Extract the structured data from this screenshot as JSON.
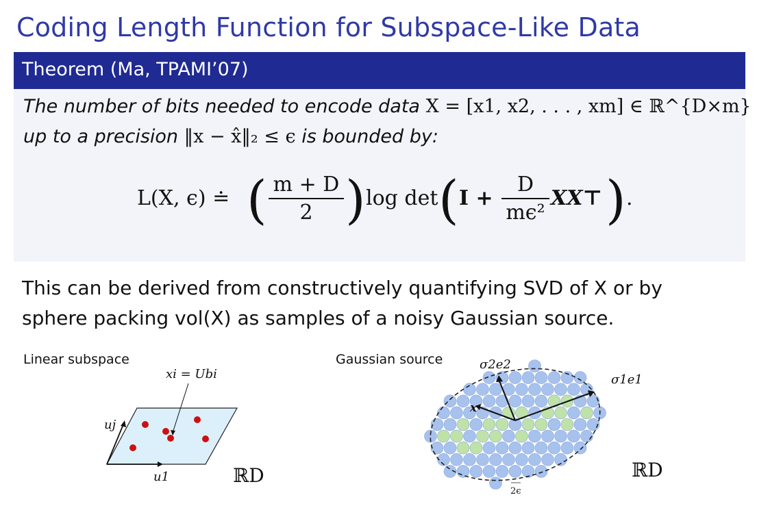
{
  "slide": {
    "title": "Coding Length Function for Subspace-Like Data"
  },
  "theorem": {
    "header": "Theorem (Ma, TPAMI’07)",
    "line1_text": "The number of bits needed to encode data",
    "line1_math": "X = [x1, x2, . . . , xm] ∈ ℝ^{D×m}",
    "line2_pre": "up to a precision",
    "line2_math": "‖x − x̂‖₂ ≤ ϵ",
    "line2_post": "is bounded by:",
    "equation": {
      "lhs": "L(X, ϵ) ≐",
      "frac1_num": "m + D",
      "frac1_den": "2",
      "logdet": "log det",
      "identity": "I +",
      "frac2_num": "D",
      "frac2_den": "mϵ²",
      "tail": "XX⊤",
      "end": "."
    }
  },
  "body": {
    "line1": "This can be derived from constructively quantifying SVD of X or by",
    "line2": "sphere packing vol(X) as samples of a noisy Gaussian source."
  },
  "figure_left": {
    "title": "Linear subspace",
    "annotation": "xi = Ubi",
    "axis_j": "uj",
    "axis_1": "u1",
    "space": "ℝD"
  },
  "figure_right": {
    "title": "Gaussian source",
    "sigma2": "σ2e2",
    "sigma1": "σ1e1",
    "x_label": "x",
    "eps": "2ϵ",
    "space": "ℝD"
  },
  "colors": {
    "title_blue": "#2f3aa6",
    "bar_blue": "#1f2a92",
    "dot_red": "#cc1111",
    "plane_blue": "#dcf0fb",
    "circle_blue": "#a8c2ee",
    "circle_green": "#bfe2a8"
  }
}
